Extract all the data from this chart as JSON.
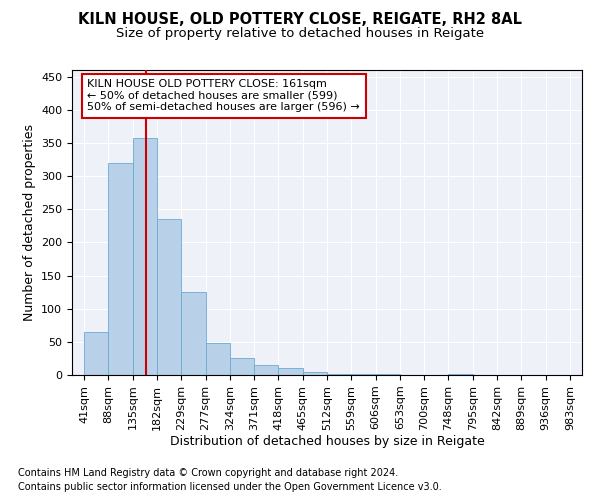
{
  "title1": "KILN HOUSE, OLD POTTERY CLOSE, REIGATE, RH2 8AL",
  "title2": "Size of property relative to detached houses in Reigate",
  "xlabel": "Distribution of detached houses by size in Reigate",
  "ylabel": "Number of detached properties",
  "footnote1": "Contains HM Land Registry data © Crown copyright and database right 2024.",
  "footnote2": "Contains public sector information licensed under the Open Government Licence v3.0.",
  "annotation_line1": "KILN HOUSE OLD POTTERY CLOSE: 161sqm",
  "annotation_line2": "← 50% of detached houses are smaller (599)",
  "annotation_line3": "50% of semi-detached houses are larger (596) →",
  "bar_values": [
    65,
    320,
    358,
    235,
    125,
    48,
    25,
    15,
    10,
    4,
    2,
    1,
    1,
    0,
    0,
    1,
    0,
    0,
    0,
    0
  ],
  "categories": [
    "41sqm",
    "88sqm",
    "135sqm",
    "182sqm",
    "229sqm",
    "277sqm",
    "324sqm",
    "371sqm",
    "418sqm",
    "465sqm",
    "512sqm",
    "559sqm",
    "606sqm",
    "653sqm",
    "700sqm",
    "748sqm",
    "795sqm",
    "842sqm",
    "889sqm",
    "936sqm",
    "983sqm"
  ],
  "bar_color": "#b8d0e8",
  "bar_edge_color": "#6aaad4",
  "vline_color": "#cc0000",
  "ylim": [
    0,
    460
  ],
  "yticks": [
    0,
    50,
    100,
    150,
    200,
    250,
    300,
    350,
    400,
    450
  ],
  "background_color": "#eef2f8",
  "annotation_box_color": "white",
  "annotation_box_edge": "#cc0000",
  "title_fontsize": 10.5,
  "subtitle_fontsize": 9.5,
  "axis_label_fontsize": 9,
  "tick_fontsize": 8,
  "footnote_fontsize": 7
}
